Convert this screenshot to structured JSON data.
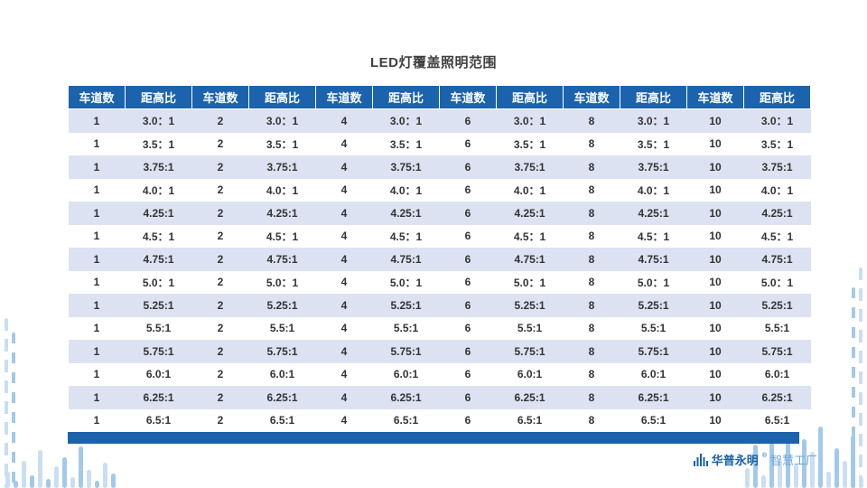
{
  "title": "LED灯覆盖照明范围",
  "table": {
    "headers": [
      "车道数",
      "距高比",
      "车道数",
      "距高比",
      "车道数",
      "距高比",
      "车道数",
      "距高比",
      "车道数",
      "距高比",
      "车道数",
      "距高比"
    ],
    "lanes": [
      "1",
      "2",
      "4",
      "6",
      "8",
      "10"
    ],
    "ratios": [
      "3.0：1",
      "3.5：1",
      "3.75:1",
      "4.0：1",
      "4.25:1",
      "4.5：1",
      "4.75:1",
      "5.0：1",
      "5.25:1",
      "5.5:1",
      "5.75:1",
      "6.0:1",
      "6.25:1",
      "6.5:1"
    ]
  },
  "brand": {
    "name": "华普永明",
    "reg": "®",
    "suffix": "智慧工厂"
  },
  "colors": {
    "header_blue": "#1b63ad",
    "row_shade": "#dce2f1",
    "deco_bar_light": "#cadef3",
    "deco_bar_dark": "#a3c9ea"
  }
}
